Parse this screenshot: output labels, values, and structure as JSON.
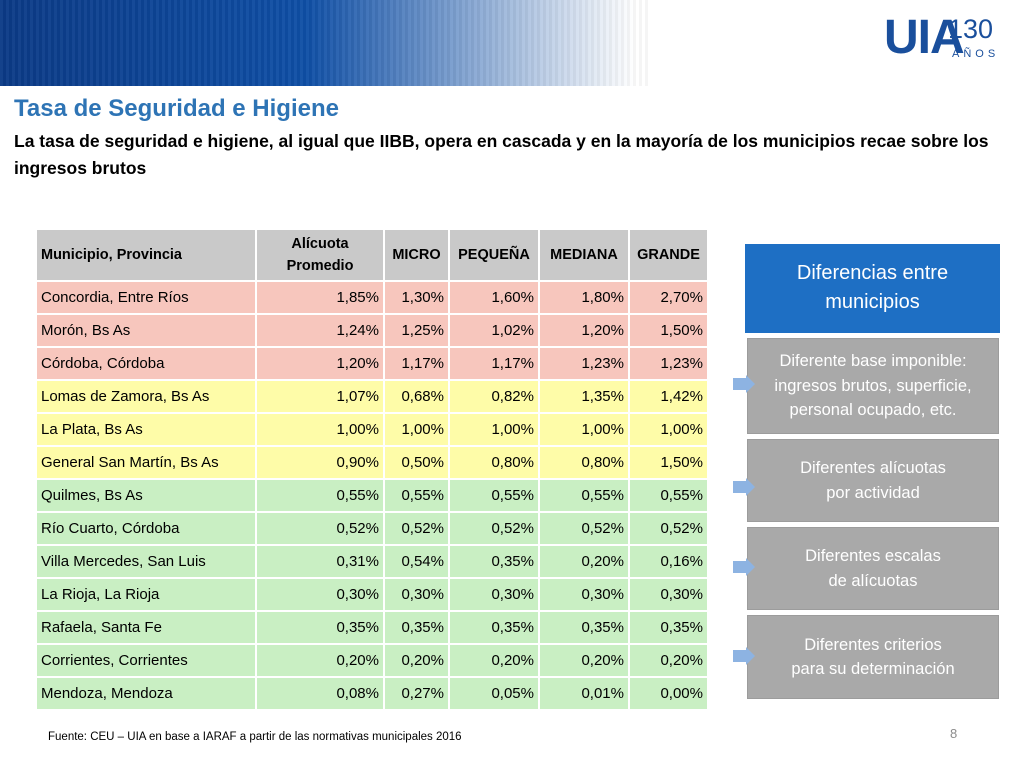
{
  "logo": {
    "mark": "UIA",
    "number": "130",
    "subtext": "AÑOS"
  },
  "title": "Tasa de Seguridad e Higiene",
  "subtitle": "La tasa de seguridad e higiene, al igual que IIBB,  opera en cascada y en la mayoría de los municipios recae sobre los ingresos brutos",
  "table": {
    "headers": [
      "Municipio, Provincia",
      "Alícuota Promedio",
      "MICRO",
      "PEQUEÑA",
      "MEDIANA",
      "GRANDE"
    ],
    "header_alicuota_line1": "Alícuota",
    "header_alicuota_line2": "Promedio",
    "rows": [
      {
        "group": "red",
        "cells": [
          "Concordia, Entre Ríos",
          "1,85%",
          "1,30%",
          "1,60%",
          "1,80%",
          "2,70%"
        ]
      },
      {
        "group": "red",
        "cells": [
          "Morón, Bs As",
          "1,24%",
          "1,25%",
          "1,02%",
          "1,20%",
          "1,50%"
        ]
      },
      {
        "group": "red",
        "cells": [
          "Córdoba, Córdoba",
          "1,20%",
          "1,17%",
          "1,17%",
          "1,23%",
          "1,23%"
        ]
      },
      {
        "group": "yellow",
        "cells": [
          "Lomas de Zamora, Bs As",
          "1,07%",
          "0,68%",
          "0,82%",
          "1,35%",
          "1,42%"
        ]
      },
      {
        "group": "yellow",
        "cells": [
          "La Plata, Bs As",
          "1,00%",
          "1,00%",
          "1,00%",
          "1,00%",
          "1,00%"
        ]
      },
      {
        "group": "yellow",
        "cells": [
          "General San Martín, Bs As",
          "0,90%",
          "0,50%",
          "0,80%",
          "0,80%",
          "1,50%"
        ]
      },
      {
        "group": "green",
        "cells": [
          "Quilmes, Bs As",
          "0,55%",
          "0,55%",
          "0,55%",
          "0,55%",
          "0,55%"
        ]
      },
      {
        "group": "green",
        "cells": [
          "Río Cuarto, Córdoba",
          "0,52%",
          "0,52%",
          "0,52%",
          "0,52%",
          "0,52%"
        ]
      },
      {
        "group": "green",
        "cells": [
          "Villa Mercedes, San Luis",
          "0,31%",
          "0,54%",
          "0,35%",
          "0,20%",
          "0,16%"
        ]
      },
      {
        "group": "green",
        "cells": [
          "La Rioja, La Rioja",
          "0,30%",
          "0,30%",
          "0,30%",
          "0,30%",
          "0,30%"
        ]
      },
      {
        "group": "green",
        "cells": [
          "Rafaela, Santa Fe",
          "0,35%",
          "0,35%",
          "0,35%",
          "0,35%",
          "0,35%"
        ]
      },
      {
        "group": "green",
        "cells": [
          "Corrientes, Corrientes",
          "0,20%",
          "0,20%",
          "0,20%",
          "0,20%",
          "0,20%"
        ]
      },
      {
        "group": "green",
        "cells": [
          "Mendoza, Mendoza",
          "0,08%",
          "0,27%",
          "0,05%",
          "0,01%",
          "0,00%"
        ]
      }
    ]
  },
  "source": "Fuente: CEU – UIA en base a IARAF a partir de las normativas municipales 2016",
  "page_number": "8",
  "panel": {
    "heading_line1": "Diferencias entre",
    "heading_line2": "municipios",
    "items": [
      {
        "lines": [
          "Diferente base imponible:",
          "ingresos brutos, superficie,",
          "personal ocupado, etc."
        ]
      },
      {
        "lines": [
          "Diferentes alícuotas",
          "por actividad"
        ]
      },
      {
        "lines": [
          "Diferentes escalas",
          "de alícuotas"
        ]
      },
      {
        "lines": [
          "Diferentes criterios",
          "para su determinación"
        ]
      }
    ]
  },
  "colors": {
    "title": "#2e74b5",
    "header_band": "#0f4fa6",
    "row_red": "#f7c6bd",
    "row_yellow": "#fefca8",
    "row_green": "#c9efc3",
    "panel_head": "#1e6fc4",
    "panel_box": "#a9a9a9",
    "arrow": "#8db3e2"
  }
}
